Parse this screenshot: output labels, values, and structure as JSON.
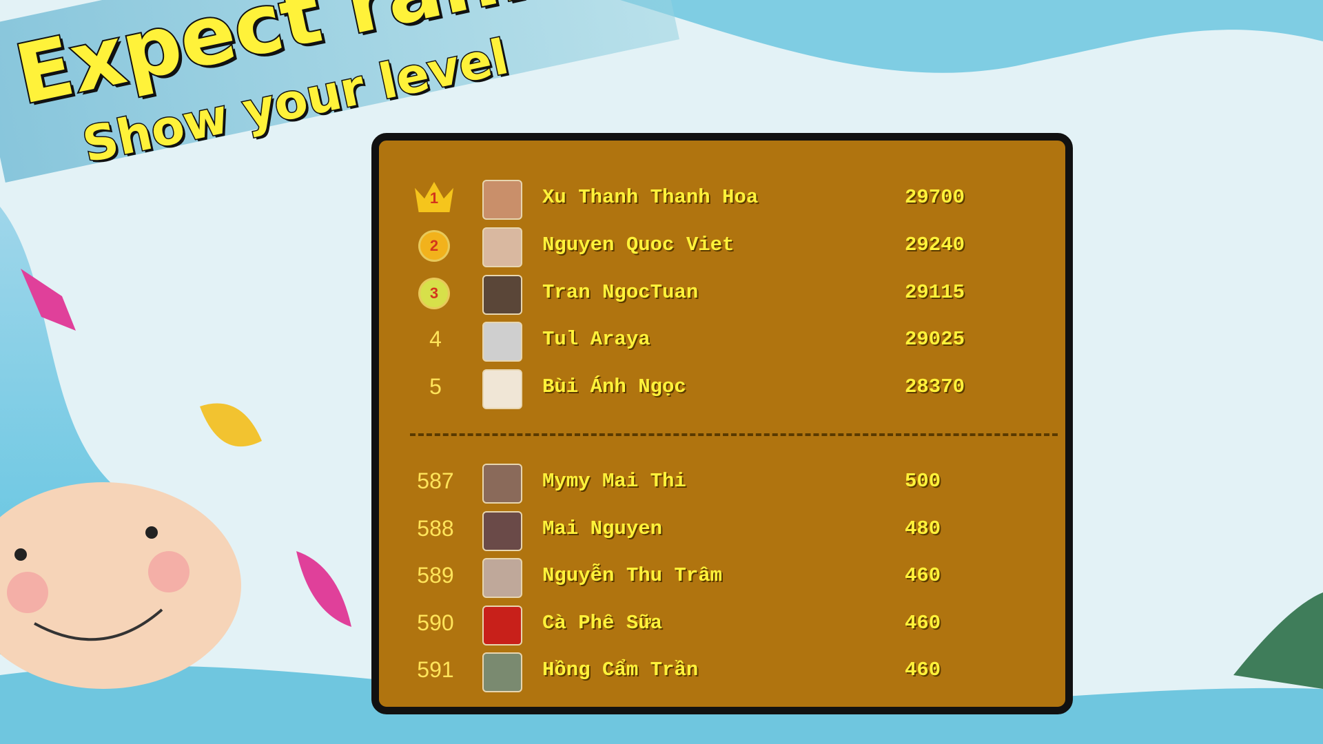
{
  "header": {
    "title": "Expect ranking",
    "subtitle": "Show your level"
  },
  "top_ranks": [
    {
      "rank": "1",
      "name": "Xu Thanh Thanh Hoa",
      "score": 29700
    },
    {
      "rank": "2",
      "name": "Nguyen Quoc Viet",
      "score": 29240
    },
    {
      "rank": "3",
      "name": "Tran NgocTuan",
      "score": 29115
    },
    {
      "rank": "4",
      "name": "Tul Araya",
      "score": 29025
    },
    {
      "rank": "5",
      "name": "Bùi Ánh Ngọc",
      "score": 28370
    }
  ],
  "own_ranks": [
    {
      "rank": "587",
      "name": "Mymy Mai Thi",
      "score": 500
    },
    {
      "rank": "588",
      "name": "Mai Nguyen",
      "score": 480
    },
    {
      "rank": "589",
      "name": "Nguyễn Thu Trâm",
      "score": 460
    },
    {
      "rank": "590",
      "name": "Cà Phê Sữa",
      "score": 460
    },
    {
      "rank": "591",
      "name": "Hồng Cẩm Trần",
      "score": 460
    }
  ]
}
